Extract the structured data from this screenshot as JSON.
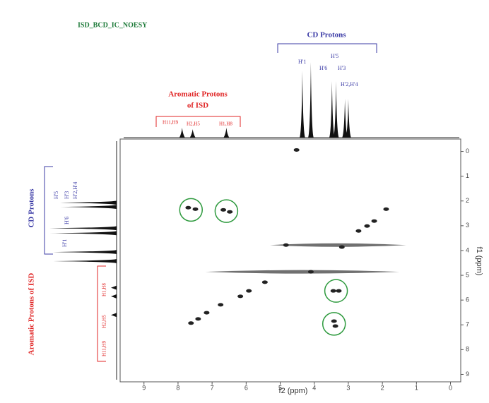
{
  "chart_data": {
    "type": "nmr2d",
    "title": "ISD_BCD_IC_NOESY",
    "xlabel": "f2 (ppm)",
    "ylabel": "f1 (ppm)",
    "xlim": [
      9.7,
      -0.3
    ],
    "ylim": [
      -0.5,
      9.3
    ],
    "xticks": [
      9,
      8,
      7,
      6,
      5,
      4,
      3,
      2,
      1,
      0
    ],
    "yticks": [
      0,
      1,
      2,
      3,
      4,
      5,
      6,
      7,
      8,
      9
    ],
    "peaks": {
      "x": [
        1.89,
        2.24,
        2.45,
        2.7,
        3.19,
        4.83,
        4.1,
        5.45,
        5.92,
        6.17,
        6.75,
        7.16,
        7.41,
        7.62,
        4.52,
        7.7,
        7.49,
        6.67,
        6.48,
        3.44,
        3.28,
        3.42,
        3.38
      ],
      "y": [
        2.33,
        2.81,
        3.01,
        3.21,
        3.86,
        3.78,
        4.86,
        5.28,
        5.63,
        5.85,
        6.19,
        6.51,
        6.76,
        6.93,
        -0.06,
        2.27,
        2.33,
        2.36,
        2.44,
        5.63,
        5.63,
        6.85,
        7.05
      ]
    },
    "ridges": {
      "y": [
        3.78,
        4.86
      ],
      "x_from": [
        5.3,
        7.2
      ],
      "x_to": [
        1.3,
        1.5
      ]
    },
    "circles": {
      "x": [
        7.62,
        6.58,
        3.36,
        3.42
      ],
      "y": [
        2.36,
        2.41,
        5.63,
        6.96
      ]
    },
    "top_spectrum": {
      "x": [
        4.35,
        4.1,
        3.48,
        3.36,
        3.1,
        3.0,
        7.88,
        7.57,
        6.58
      ],
      "values": [
        95,
        107,
        80,
        80,
        55,
        55,
        14,
        12,
        14
      ]
    },
    "left_spectrum": {
      "y": [
        2.07,
        2.24,
        3.1,
        3.3,
        4.06,
        4.43,
        5.5,
        5.85,
        6.6
      ],
      "values": [
        80,
        80,
        95,
        95,
        90,
        90,
        8,
        8,
        8
      ]
    },
    "annotations": {
      "top_cd": "CD Protons",
      "top_cd_peaks": [
        "H'1",
        "H'6",
        "H'5",
        "H'3",
        "H'2,H'4"
      ],
      "top_aromatic_line1": "Aromatic Protons",
      "top_aromatic_line2": "of ISD",
      "top_aromatic_peaks": [
        "H11,H9",
        "H2,H5",
        "H1,H8"
      ],
      "left_cd": "CD Protons",
      "left_cd_peaks": [
        "H'1",
        "H'6",
        "H'5",
        "H'3",
        "H'2,H'4"
      ],
      "left_aromatic": "Aromatic Protons of ISD",
      "left_aromatic_peaks": [
        "H11,H9",
        "H2,H5",
        "H1,H8"
      ]
    }
  }
}
